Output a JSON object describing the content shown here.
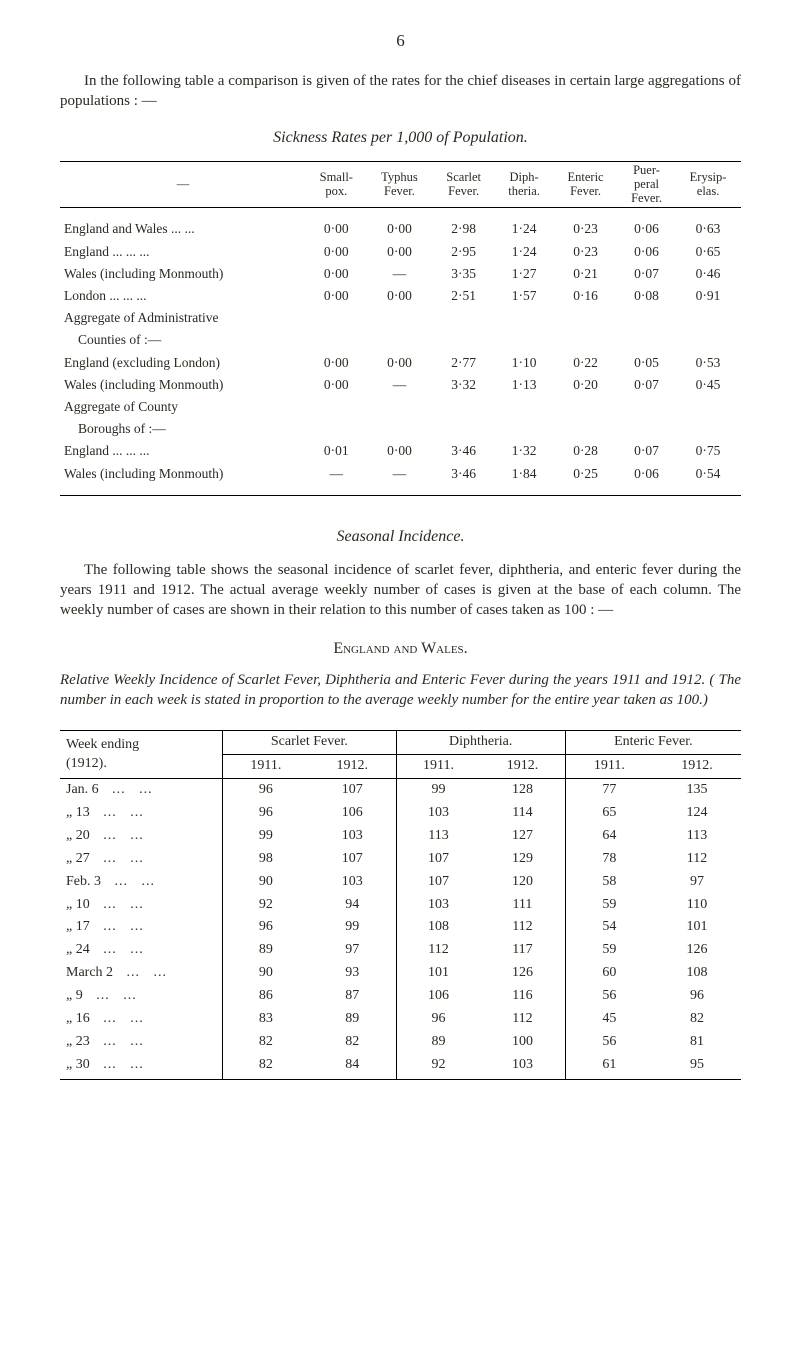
{
  "pageNumber": "6",
  "intro": "In the following table a comparison is given of the rates for the chief diseases in certain large aggregations of populations : —",
  "table1": {
    "title": "Sickness Rates per 1,000 of Population.",
    "columns": [
      "—",
      "Small-\npox.",
      "Typhus\nFever.",
      "Scarlet\nFever.",
      "Diph-\ntheria.",
      "Enteric\nFever.",
      "Puer-\nperal\nFever.",
      "Erysip-\nelas."
    ],
    "rows": [
      {
        "label": "England and Wales ...      ...",
        "vals": [
          "0·00",
          "0·00",
          "2·98",
          "1·24",
          "0·23",
          "0·06",
          "0·63"
        ]
      },
      {
        "label": "England        ...      ...      ...",
        "vals": [
          "0·00",
          "0·00",
          "2·95",
          "1·24",
          "0·23",
          "0·06",
          "0·65"
        ]
      },
      {
        "label": "Wales (including Monmouth)",
        "vals": [
          "0·00",
          "—",
          "3·35",
          "1·27",
          "0·21",
          "0·07",
          "0·46"
        ]
      },
      {
        "label": "London         ...      ...      ...",
        "vals": [
          "0·00",
          "0·00",
          "2·51",
          "1·57",
          "0·16",
          "0·08",
          "0·91"
        ]
      },
      {
        "label": "Aggregate of Administrative",
        "vals": [
          "",
          "",
          "",
          "",
          "",
          "",
          ""
        ]
      },
      {
        "label": "  Counties of :—",
        "vals": [
          "",
          "",
          "",
          "",
          "",
          "",
          ""
        ],
        "sub": true
      },
      {
        "label": "England (excluding London)",
        "vals": [
          "0·00",
          "0·00",
          "2·77",
          "1·10",
          "0·22",
          "0·05",
          "0·53"
        ]
      },
      {
        "label": "Wales (including Monmouth)",
        "vals": [
          "0·00",
          "—",
          "3·32",
          "1·13",
          "0·20",
          "0·07",
          "0·45"
        ]
      },
      {
        "label": "Aggregate of County",
        "vals": [
          "",
          "",
          "",
          "",
          "",
          "",
          ""
        ]
      },
      {
        "label": "  Boroughs of :—",
        "vals": [
          "",
          "",
          "",
          "",
          "",
          "",
          ""
        ],
        "sub": true
      },
      {
        "label": "England        ...      ...      ...",
        "vals": [
          "0·01",
          "0·00",
          "3·46",
          "1·32",
          "0·28",
          "0·07",
          "0·75"
        ]
      },
      {
        "label": "Wales (including Monmouth)",
        "vals": [
          "—",
          "—",
          "3·46",
          "1·84",
          "0·25",
          "0·06",
          "0·54"
        ]
      }
    ]
  },
  "seasonalTitle": "Seasonal Incidence.",
  "seasonalPara": "The following table shows the seasonal incidence of scarlet fever, diphtheria, and enteric fever during the years 1911 and 1912.  The actual average weekly number of cases is given at the base of each column.  The weekly number of cases are shown in their relation to this number of cases taken as 100 : —",
  "regionTitle": "England and Wales.",
  "relTitle": "Relative Weekly Incidence of Scarlet Fever, Diphtheria and Enteric Fever during the years 1911 and 1912.  ( The number in each week is stated in proportion to the average weekly number for the entire year taken as 100.)",
  "table2": {
    "stub": "Week ending\n(1912).",
    "groups": [
      "Scarlet Fever.",
      "Diphtheria.",
      "Enteric Fever."
    ],
    "years": [
      "1911.",
      "1912.",
      "1911.",
      "1912.",
      "1911.",
      "1912."
    ],
    "rows": [
      {
        "wk": "Jan.   6",
        "v": [
          "96",
          "107",
          "99",
          "128",
          "77",
          "135"
        ]
      },
      {
        "wk": "„   13",
        "v": [
          "96",
          "106",
          "103",
          "114",
          "65",
          "124"
        ]
      },
      {
        "wk": "„   20",
        "v": [
          "99",
          "103",
          "113",
          "127",
          "64",
          "113"
        ]
      },
      {
        "wk": "„   27",
        "v": [
          "98",
          "107",
          "107",
          "129",
          "78",
          "112"
        ]
      },
      {
        "wk": "Feb.   3",
        "v": [
          "90",
          "103",
          "107",
          "120",
          "58",
          "97"
        ]
      },
      {
        "wk": "„   10",
        "v": [
          "92",
          "94",
          "103",
          "111",
          "59",
          "110"
        ]
      },
      {
        "wk": "„   17",
        "v": [
          "96",
          "99",
          "108",
          "112",
          "54",
          "101"
        ]
      },
      {
        "wk": "„   24",
        "v": [
          "89",
          "97",
          "112",
          "117",
          "59",
          "126"
        ]
      },
      {
        "wk": "March 2",
        "v": [
          "90",
          "93",
          "101",
          "126",
          "60",
          "108"
        ]
      },
      {
        "wk": "„    9",
        "v": [
          "86",
          "87",
          "106",
          "116",
          "56",
          "96"
        ]
      },
      {
        "wk": "„   16",
        "v": [
          "83",
          "89",
          "96",
          "112",
          "45",
          "82"
        ]
      },
      {
        "wk": "„   23",
        "v": [
          "82",
          "82",
          "89",
          "100",
          "56",
          "81"
        ]
      },
      {
        "wk": "„   30",
        "v": [
          "82",
          "84",
          "92",
          "103",
          "61",
          "95"
        ]
      }
    ]
  }
}
